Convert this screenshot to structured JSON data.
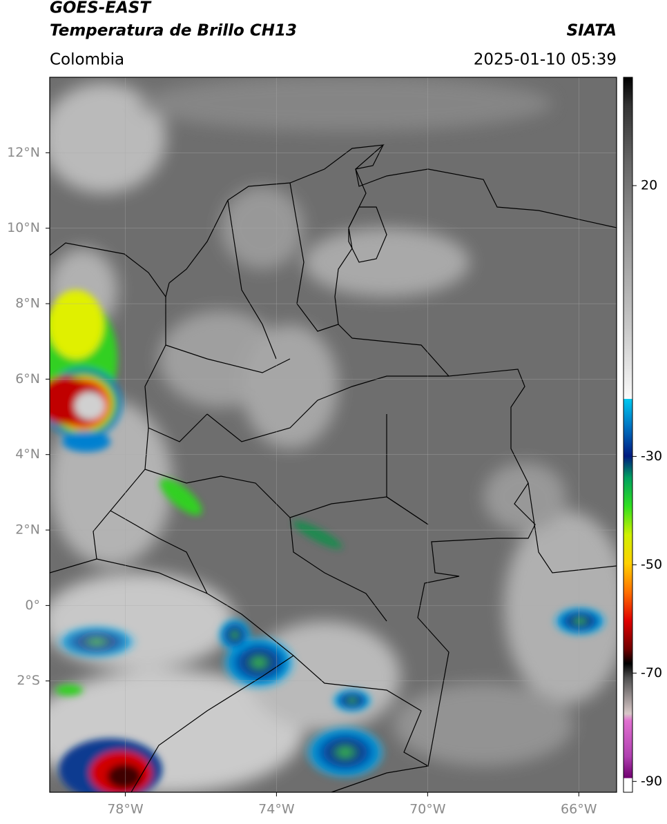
{
  "header": {
    "satellite": "GOES-EAST",
    "product": "Temperatura de Brillo CH13",
    "region": "Colombia",
    "agency": "SIATA",
    "datetime": "2025-01-10 05:39"
  },
  "map": {
    "xlim": [
      -80,
      -65
    ],
    "ylim": [
      -4.95,
      14
    ],
    "xticks": [
      {
        "value": -78,
        "label": "78°W"
      },
      {
        "value": -74,
        "label": "74°W"
      },
      {
        "value": -70,
        "label": "70°W"
      },
      {
        "value": -66,
        "label": "66°W"
      }
    ],
    "yticks": [
      {
        "value": 12,
        "label": "12°N"
      },
      {
        "value": 10,
        "label": "10°N"
      },
      {
        "value": 8,
        "label": "8°N"
      },
      {
        "value": 6,
        "label": "6°N"
      },
      {
        "value": 4,
        "label": "4°N"
      },
      {
        "value": 2,
        "label": "2°N"
      },
      {
        "value": 0,
        "label": "0°"
      },
      {
        "value": -2,
        "label": "2°S"
      }
    ],
    "grid": true
  },
  "colorbar": {
    "lim": [
      -92,
      40
    ],
    "ticks": [
      20,
      -30,
      -50,
      -70,
      -90
    ]
  }
}
